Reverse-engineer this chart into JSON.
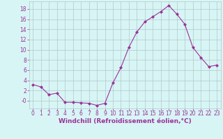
{
  "x": [
    0,
    1,
    2,
    3,
    4,
    5,
    6,
    7,
    8,
    9,
    10,
    11,
    12,
    13,
    14,
    15,
    16,
    17,
    18,
    19,
    20,
    21,
    22,
    23
  ],
  "y": [
    3.2,
    2.7,
    1.2,
    1.5,
    -0.3,
    -0.3,
    -0.4,
    -0.5,
    -0.9,
    -0.5,
    3.5,
    6.5,
    10.5,
    13.5,
    15.5,
    16.5,
    17.5,
    18.7,
    17.0,
    15.0,
    10.5,
    8.5,
    6.7,
    7.0
  ],
  "line_color": "#993399",
  "marker": "D",
  "marker_size": 2,
  "bg_color": "#d8f5f5",
  "grid_color": "#b0c8c8",
  "tick_color": "#993399",
  "label_color": "#993399",
  "xlabel": "Windchill (Refroidissement éolien,°C)",
  "ylim": [
    -1.5,
    19.5
  ],
  "xlim": [
    -0.5,
    23.5
  ],
  "yticks": [
    0,
    2,
    4,
    6,
    8,
    10,
    12,
    14,
    16,
    18
  ],
  "xticks": [
    0,
    1,
    2,
    3,
    4,
    5,
    6,
    7,
    8,
    9,
    10,
    11,
    12,
    13,
    14,
    15,
    16,
    17,
    18,
    19,
    20,
    21,
    22,
    23
  ],
  "tick_fontsize": 5.5,
  "xlabel_fontsize": 6.5
}
